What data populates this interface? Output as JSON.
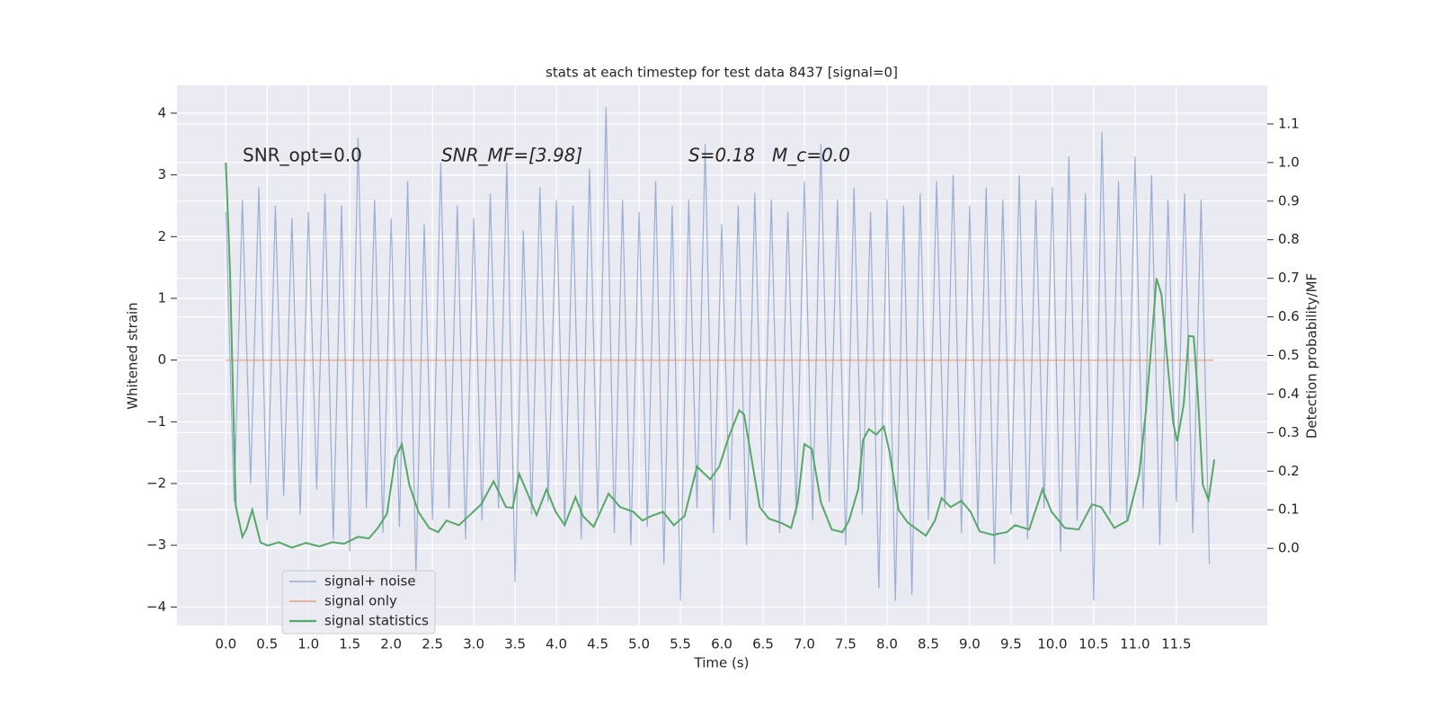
{
  "chart_data": {
    "type": "line",
    "title": "stats at each timestep for test data 8437 [signal=0]",
    "xlabel": "Time (s)",
    "ylabel": "Whitened strain",
    "y2label": "Detection probability/MF",
    "annotations": [
      "SNR_opt=0.0",
      "SNR_MF=[3.98]",
      "S=0.18",
      "M_c=0.0"
    ],
    "xlim": [
      -0.59,
      12.6
    ],
    "ylim": [
      -4.3,
      4.45
    ],
    "y2lim": [
      -0.2,
      1.2
    ],
    "xticks": [
      {
        "value": 0,
        "label": "0.0"
      },
      0.5,
      {
        "value": 1,
        "label": "1.0"
      },
      1.5,
      {
        "value": 2,
        "label": "2.0"
      },
      2.5,
      {
        "value": 3,
        "label": "3.0"
      },
      3.5,
      {
        "value": 4,
        "label": "4.0"
      },
      4.5,
      {
        "value": 5,
        "label": "5.0"
      },
      5.5,
      {
        "value": 6,
        "label": "6.0"
      },
      6.5,
      {
        "value": 7,
        "label": "7.0"
      },
      7.5,
      {
        "value": 8,
        "label": "8.0"
      },
      8.5,
      {
        "value": 9,
        "label": "9.0"
      },
      9.5,
      {
        "value": 10,
        "label": "10.0"
      },
      10.5,
      {
        "value": 11,
        "label": "11.0"
      },
      11.5
    ],
    "yticks": [
      {
        "value": -4,
        "label": "−4"
      },
      {
        "value": -3,
        "label": "−3"
      },
      {
        "value": -2,
        "label": "−2"
      },
      {
        "value": -1,
        "label": "−1"
      },
      0,
      1,
      2,
      3,
      4
    ],
    "y2ticks": [
      {
        "value": 0,
        "label": "0.0"
      },
      0.1,
      0.2,
      0.3,
      0.4,
      0.5,
      0.6,
      0.7,
      0.8,
      0.9,
      {
        "value": 1,
        "label": "1.0"
      },
      1.1
    ],
    "grid": true,
    "legend": "lower left",
    "series": [
      {
        "name": "signal+ noise",
        "color": "#4c72b0",
        "x": [
          0.0,
          0.1,
          0.2,
          0.3,
          0.4,
          0.5,
          0.6,
          0.7,
          0.8,
          0.9,
          1.0,
          1.1,
          1.2,
          1.3,
          1.4,
          1.5,
          1.6,
          1.7,
          1.8,
          1.9,
          2.0,
          2.1,
          2.2,
          2.3,
          2.4,
          2.5,
          2.6,
          2.7,
          2.8,
          2.9,
          3.0,
          3.1,
          3.2,
          3.3,
          3.4,
          3.5,
          3.6,
          3.7,
          3.8,
          3.9,
          4.0,
          4.1,
          4.2,
          4.3,
          4.4,
          4.5,
          4.6,
          4.7,
          4.8,
          4.9,
          5.0,
          5.1,
          5.2,
          5.3,
          5.4,
          5.5,
          5.6,
          5.7,
          5.8,
          5.9,
          6.0,
          6.1,
          6.2,
          6.3,
          6.4,
          6.5,
          6.6,
          6.7,
          6.8,
          6.9,
          7.0,
          7.1,
          7.2,
          7.3,
          7.4,
          7.5,
          7.6,
          7.7,
          7.8,
          7.9,
          8.0,
          8.1,
          8.2,
          8.3,
          8.4,
          8.5,
          8.6,
          8.7,
          8.8,
          8.9,
          9.0,
          9.1,
          9.2,
          9.3,
          9.4,
          9.5,
          9.6,
          9.7,
          9.8,
          9.9,
          10.0,
          10.1,
          10.2,
          10.3,
          10.4,
          10.5,
          10.6,
          10.7,
          10.8,
          10.9,
          11.0,
          11.1,
          11.2,
          11.3,
          11.4,
          11.5,
          11.6,
          11.7,
          11.8,
          11.9
        ],
        "values": [
          2.4,
          -2.3,
          2.6,
          -2.0,
          2.8,
          -2.6,
          2.5,
          -2.2,
          2.3,
          -2.5,
          2.4,
          -2.1,
          2.7,
          -2.9,
          2.5,
          -3.1,
          3.6,
          -2.4,
          2.6,
          -2.8,
          2.3,
          -2.7,
          2.9,
          -3.5,
          2.2,
          -2.6,
          3.2,
          -2.4,
          2.5,
          -2.9,
          2.3,
          -2.6,
          2.7,
          -2.4,
          3.2,
          -3.6,
          2.1,
          -2.5,
          2.8,
          -2.3,
          2.6,
          -2.7,
          2.5,
          -2.9,
          3.1,
          -2.5,
          4.1,
          -2.8,
          2.6,
          -3.0,
          2.4,
          -2.7,
          2.9,
          -3.3,
          2.5,
          -3.9,
          2.6,
          -2.4,
          3.5,
          -2.8,
          2.2,
          -2.6,
          2.5,
          -3.0,
          2.7,
          -2.4,
          2.6,
          -2.8,
          2.4,
          -2.5,
          2.9,
          -2.6,
          3.5,
          -2.3,
          2.6,
          -3.0,
          2.8,
          -2.5,
          2.4,
          -3.7,
          2.6,
          -3.9,
          2.5,
          -3.8,
          2.7,
          -2.6,
          2.9,
          -2.4,
          3.0,
          -2.8,
          2.5,
          -2.7,
          2.8,
          -3.3,
          2.6,
          -2.5,
          3.0,
          -2.9,
          2.6,
          -2.4,
          2.8,
          -3.1,
          3.3,
          -2.6,
          2.7,
          -3.9,
          3.7,
          -2.5,
          2.9,
          -2.6,
          3.3,
          -2.4,
          3.0,
          -3.0,
          2.6,
          -2.3,
          2.7,
          -2.8,
          2.6,
          -3.3
        ]
      },
      {
        "name": "signal only",
        "color": "#dd8452",
        "x": [
          0.0,
          11.95
        ],
        "values": [
          0,
          0
        ]
      },
      {
        "name": "signal statistics",
        "color": "#55a868",
        "axis": "y2",
        "x": [
          0,
          0.05,
          0.12,
          0.2,
          0.25,
          0.32,
          0.42,
          0.51,
          0.64,
          0.8,
          0.97,
          1.13,
          1.29,
          1.43,
          1.6,
          1.73,
          1.84,
          1.95,
          2.05,
          2.13,
          2.22,
          2.33,
          2.46,
          2.57,
          2.67,
          2.82,
          2.92,
          3.09,
          3.24,
          3.39,
          3.47,
          3.55,
          3.63,
          3.76,
          3.88,
          3.99,
          4.1,
          4.23,
          4.32,
          4.45,
          4.63,
          4.77,
          4.93,
          5.04,
          5.15,
          5.29,
          5.42,
          5.55,
          5.7,
          5.86,
          5.97,
          6.08,
          6.21,
          6.27,
          6.35,
          6.46,
          6.57,
          6.73,
          6.84,
          6.92,
          7.0,
          7.09,
          7.2,
          7.33,
          7.46,
          7.54,
          7.65,
          7.71,
          7.78,
          7.87,
          7.96,
          8.03,
          8.14,
          8.25,
          8.47,
          8.58,
          8.66,
          8.77,
          8.9,
          9.01,
          9.12,
          9.28,
          9.45,
          9.55,
          9.72,
          9.88,
          9.99,
          10.15,
          10.32,
          10.48,
          10.59,
          10.75,
          10.91,
          11.05,
          11.13,
          11.21,
          11.26,
          11.32,
          11.4,
          11.46,
          11.51,
          11.59,
          11.65,
          11.71,
          11.76,
          11.82,
          11.89,
          11.96
        ],
        "values": [
          1.0,
          0.72,
          0.11,
          0.03,
          0.05,
          0.1,
          0.015,
          0.007,
          0.016,
          0.002,
          0.014,
          0.005,
          0.016,
          0.012,
          0.03,
          0.026,
          0.053,
          0.09,
          0.235,
          0.27,
          0.165,
          0.095,
          0.053,
          0.042,
          0.072,
          0.06,
          0.08,
          0.114,
          0.174,
          0.107,
          0.105,
          0.193,
          0.153,
          0.086,
          0.153,
          0.095,
          0.06,
          0.133,
          0.084,
          0.056,
          0.142,
          0.107,
          0.095,
          0.072,
          0.084,
          0.095,
          0.06,
          0.084,
          0.212,
          0.179,
          0.212,
          0.286,
          0.358,
          0.347,
          0.247,
          0.107,
          0.077,
          0.065,
          0.053,
          0.119,
          0.27,
          0.258,
          0.119,
          0.049,
          0.042,
          0.072,
          0.153,
          0.281,
          0.309,
          0.295,
          0.316,
          0.251,
          0.1,
          0.067,
          0.033,
          0.072,
          0.13,
          0.107,
          0.123,
          0.095,
          0.044,
          0.035,
          0.042,
          0.06,
          0.049,
          0.153,
          0.095,
          0.053,
          0.049,
          0.114,
          0.107,
          0.053,
          0.072,
          0.193,
          0.351,
          0.56,
          0.7,
          0.658,
          0.467,
          0.328,
          0.277,
          0.374,
          0.551,
          0.549,
          0.398,
          0.165,
          0.126,
          0.23
        ]
      }
    ]
  }
}
